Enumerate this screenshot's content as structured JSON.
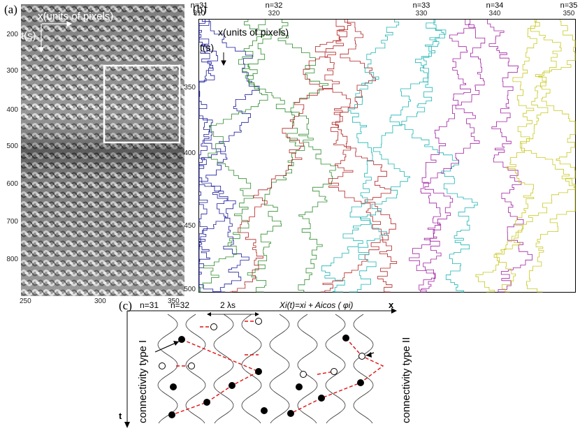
{
  "panel_a": {
    "label": "(a)",
    "x_axis_label": "x(units of pixels)",
    "t_axis_label": "t(s)",
    "y_ticks": [
      "200",
      "300",
      "400",
      "500",
      "600",
      "700",
      "800"
    ],
    "x_ticks": [
      "250",
      "300",
      "350"
    ]
  },
  "panel_b": {
    "label": "(b)",
    "x_axis_label": "x(units of pixels)",
    "t_axis_label": "t(s)",
    "top_labels": [
      {
        "n": "n=31",
        "v": "310"
      },
      {
        "n": "n=32",
        "v": "320"
      },
      {
        "n": "n=33",
        "v": "330"
      },
      {
        "n": "n=34",
        "v": "340"
      },
      {
        "n": "n=35",
        "v": "350"
      }
    ],
    "y_ticks": [
      "350",
      "400",
      "450",
      "500"
    ],
    "series_colors": [
      "#1a1a9a",
      "#2e8b2e",
      "#b22222",
      "#1fb3b3",
      "#a020a0",
      "#c8c820"
    ]
  },
  "panel_c": {
    "label": "(c)",
    "n_labels": [
      "n=31",
      "n=32"
    ],
    "lambda_label": "2 λs",
    "equation": "Xi(t)=xi + Aicos ( φi)",
    "x_label": "x",
    "t_label": "t",
    "connectivity_1": "connectivity type I",
    "connectivity_2": "connectivity type II"
  }
}
